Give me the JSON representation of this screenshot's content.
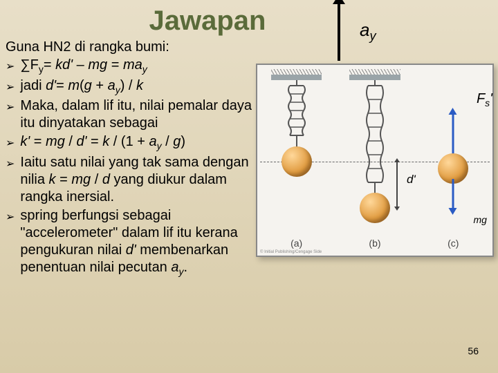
{
  "title": "Jawapan",
  "intro": "Guna HN2 di rangka bumi:",
  "bullets": [
    "∑F<sub class='sub'>y</sub>= <span class='italic'>kd'</span> – <span class='italic'>mg</span> = <span class='italic'>ma</span><sub class='sub italic'>y</sub>",
    "jadi <span class='italic'>d'</span>= <span class='italic'>m</span>(<span class='italic'>g</span> + <span class='italic'>a</span><sub class='sub italic'>y</sub>) / <span class='italic'>k</span>",
    "Maka, dalam lif itu, nilai pemalar daya itu dinyatakan sebagai",
    "<span class='italic'>k'</span> = <span class='italic'>mg</span> / <span class='italic'>d'</span> = <span class='italic'>k</span> / (1 + <span class='italic'>a</span><sub class='sub italic'>y</sub> / <span class='italic'>g</span>)",
    "Iaitu satu nilai yang tak sama dengan nilia <span class='italic'>k</span> = <span class='italic'>mg</span> / <span class='italic'>d</span> yang diukur dalam rangka inersial.",
    "spring berfungsi sebagai \"accelerometer\" dalam lif itu kerana pengukuran nilai <span class='italic'>d'</span> membenarkan penentuan nilai pecutan <span class='italic'>a</span><sub class='sub italic'>y</sub>."
  ],
  "labels": {
    "ay": "a<sub class='sub'>y</sub>",
    "fs": "F<sub class='sub'>s</sub>'",
    "d": "d'",
    "mg": "mg",
    "a": "(a)",
    "b": "(b)",
    "c": "(c)"
  },
  "page": "56",
  "copyright": "© Initial Publishing/Cengage Side"
}
